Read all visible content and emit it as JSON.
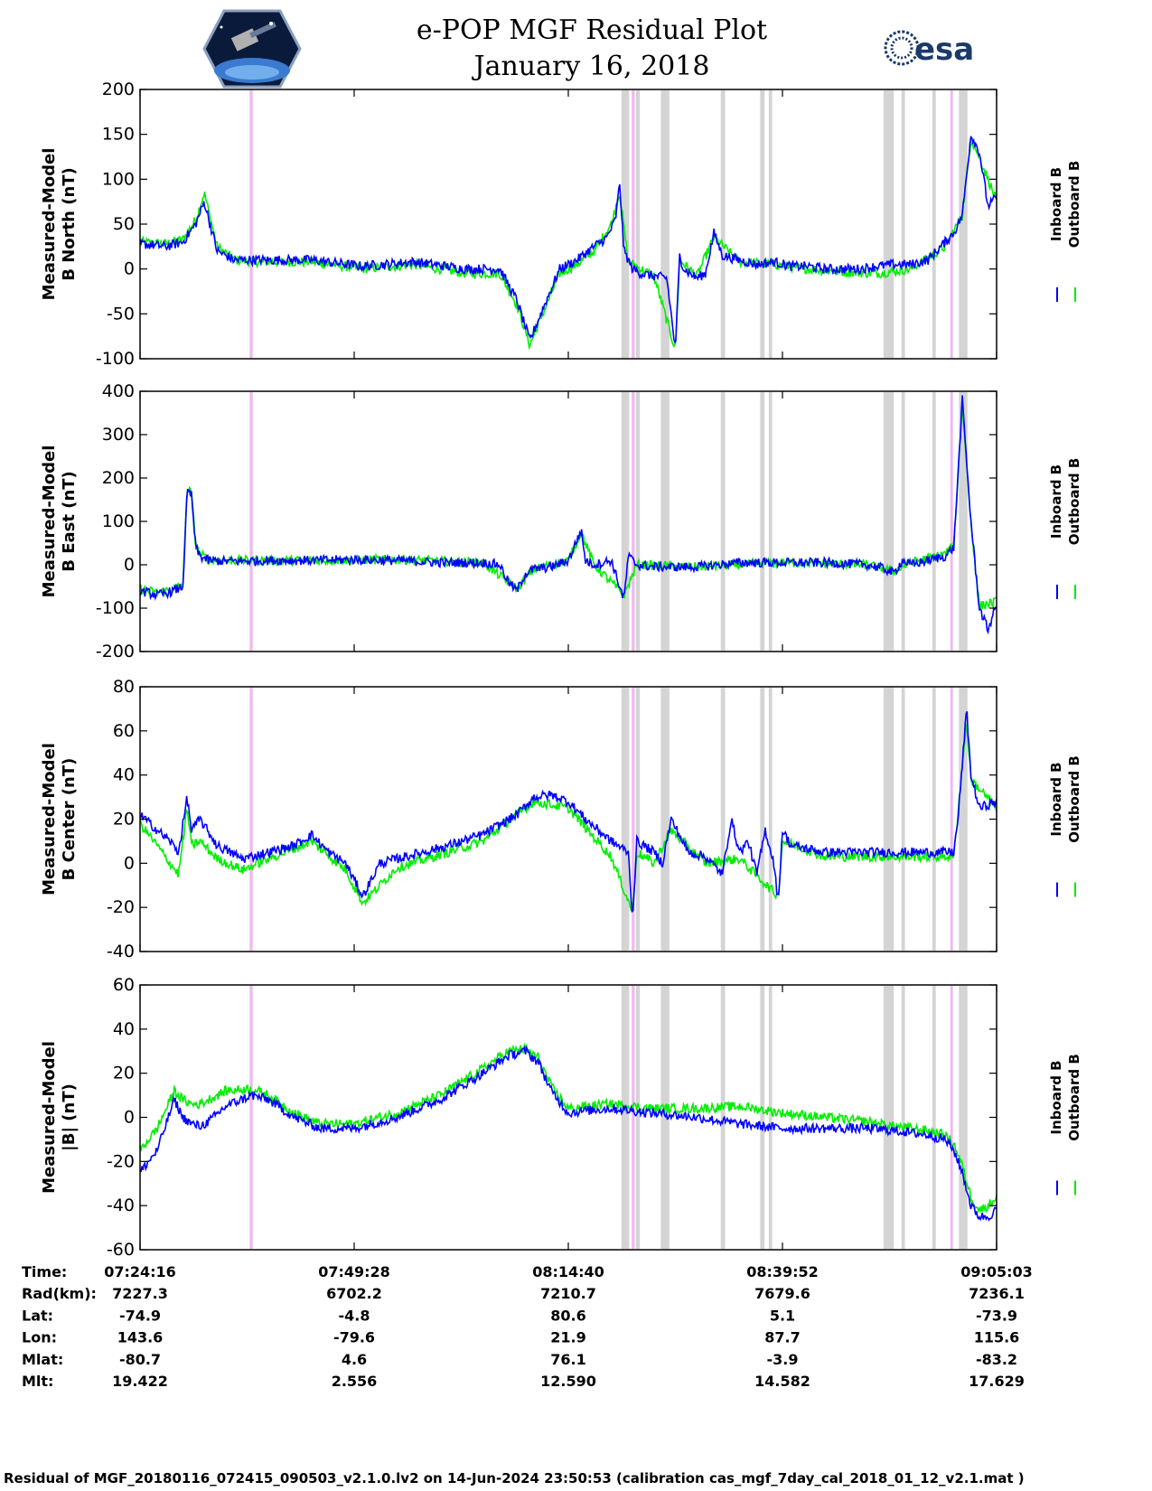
{
  "title_line1": "e-POP MGF Residual Plot",
  "title_line2": "January 16, 2018",
  "esa_logo_text": "esa",
  "footer": "Residual of MGF_20180116_072415_090503_v2.1.0.lv2 on 14-Jun-2024 23:50:53 (calibration cas_mgf_7day_cal_2018_01_12_v2.1.mat )",
  "colors": {
    "inboard": "#0000ff",
    "outboard": "#00ee00",
    "band_gray": "#d4d4d4",
    "band_pink": "#efb8ef"
  },
  "legend": {
    "inboard": "Inboard B",
    "outboard": "Outboard B"
  },
  "time_table": {
    "rows": [
      {
        "label": "Time:",
        "values": [
          "07:24:16",
          "07:49:28",
          "08:14:40",
          "08:39:52",
          "09:05:03"
        ]
      },
      {
        "label": "Rad(km):",
        "values": [
          "7227.3",
          "6702.2",
          "7210.7",
          "7679.6",
          "7236.1"
        ]
      },
      {
        "label": "Lat:",
        "values": [
          "-74.9",
          "-4.8",
          "80.6",
          "5.1",
          "-73.9"
        ]
      },
      {
        "label": "Lon:",
        "values": [
          "143.6",
          "-79.6",
          "21.9",
          "87.7",
          "115.6"
        ]
      },
      {
        "label": "Mlat:",
        "values": [
          "-80.7",
          "4.6",
          "76.1",
          "-3.9",
          "-83.2"
        ]
      },
      {
        "label": "Mlt:",
        "values": [
          "19.422",
          "2.556",
          "12.590",
          "14.582",
          "17.629"
        ]
      }
    ]
  },
  "chart_data": [
    {
      "type": "line",
      "ylabel_line1": "Measured-Model",
      "ylabel_line2": "B North (nT)",
      "ylim": [
        -100,
        200
      ],
      "yticks": [
        -100,
        -50,
        0,
        50,
        100,
        150,
        200
      ],
      "xlim": [
        0,
        100
      ],
      "xticks": [
        0,
        25,
        50,
        75,
        100
      ],
      "series": [
        {
          "name": "Inboard B",
          "color": "#0000ff",
          "x": [
            0,
            3,
            5,
            6.5,
            7.5,
            9,
            11,
            14,
            20,
            26,
            32,
            38,
            42,
            44,
            45.5,
            47,
            49,
            51,
            53,
            54.5,
            55.5,
            56,
            56.5,
            57,
            57.5,
            58.5,
            60,
            61.5,
            62.5,
            63,
            63.5,
            65,
            66,
            67,
            68,
            70,
            72,
            74,
            76,
            78,
            80,
            82,
            84,
            86,
            88,
            90,
            92,
            93.5,
            95,
            96,
            97,
            98,
            99,
            100
          ],
          "y": [
            28,
            25,
            30,
            50,
            75,
            20,
            10,
            10,
            10,
            3,
            8,
            0,
            0,
            -35,
            -80,
            -45,
            0,
            10,
            25,
            35,
            55,
            95,
            20,
            10,
            0,
            -5,
            -8,
            -10,
            -90,
            15,
            0,
            -10,
            -5,
            40,
            15,
            10,
            5,
            8,
            3,
            3,
            0,
            0,
            0,
            3,
            5,
            5,
            10,
            25,
            40,
            60,
            150,
            130,
            70,
            80
          ]
        },
        {
          "name": "Outboard B",
          "color": "#00ee00",
          "x": [
            0,
            3,
            5,
            6.5,
            7.5,
            9,
            11,
            14,
            20,
            26,
            32,
            38,
            42,
            44,
            45.5,
            47,
            49,
            51,
            53,
            55,
            56,
            57,
            60,
            62.5,
            63,
            65,
            67,
            70,
            74,
            78,
            82,
            86,
            90,
            94,
            96,
            97,
            98,
            100
          ],
          "y": [
            30,
            28,
            33,
            55,
            85,
            25,
            10,
            8,
            8,
            0,
            5,
            -5,
            -5,
            -40,
            -85,
            -50,
            -5,
            5,
            20,
            50,
            85,
            8,
            -8,
            -90,
            10,
            -8,
            35,
            8,
            5,
            0,
            -3,
            -5,
            0,
            25,
            60,
            145,
            125,
            75
          ]
        }
      ]
    },
    {
      "type": "line",
      "ylabel_line1": "Measured-Model",
      "ylabel_line2": "B East (nT)",
      "ylim": [
        -200,
        400
      ],
      "yticks": [
        -200,
        -100,
        0,
        100,
        200,
        300,
        400
      ],
      "xlim": [
        0,
        100
      ],
      "xticks": [
        0,
        25,
        50,
        75,
        100
      ],
      "series": [
        {
          "name": "Inboard B",
          "color": "#0000ff",
          "x": [
            0,
            2,
            4,
            5,
            5.5,
            6,
            6.5,
            7,
            8,
            10,
            15,
            20,
            25,
            30,
            35,
            40,
            42,
            43,
            44,
            45,
            46,
            48,
            50,
            51.5,
            52,
            53,
            55,
            56.5,
            57,
            58,
            60,
            65,
            70,
            75,
            80,
            85,
            87,
            88,
            89,
            90,
            92,
            94,
            95,
            96,
            97,
            98,
            99,
            100
          ],
          "y": [
            -60,
            -70,
            -60,
            -50,
            170,
            160,
            40,
            20,
            10,
            8,
            10,
            10,
            12,
            10,
            5,
            5,
            0,
            -40,
            -60,
            -20,
            -10,
            -5,
            10,
            80,
            10,
            0,
            10,
            -80,
            20,
            0,
            -5,
            -5,
            5,
            5,
            5,
            0,
            -10,
            -20,
            10,
            0,
            10,
            20,
            40,
            380,
            100,
            -100,
            -150,
            -90
          ]
        },
        {
          "name": "Outboard B",
          "color": "#00ee00",
          "x": [
            0,
            2,
            4,
            5,
            5.5,
            6,
            6.5,
            7,
            8,
            10,
            15,
            20,
            30,
            40,
            44,
            46,
            50,
            51.5,
            53,
            56.5,
            58,
            65,
            75,
            85,
            88,
            90,
            94,
            95,
            96,
            97,
            98,
            100
          ],
          "y": [
            -55,
            -65,
            -55,
            -45,
            175,
            165,
            45,
            25,
            12,
            10,
            10,
            10,
            12,
            5,
            -55,
            -10,
            10,
            75,
            0,
            -70,
            0,
            -5,
            5,
            0,
            -15,
            5,
            25,
            45,
            370,
            95,
            -95,
            -85
          ]
        }
      ]
    },
    {
      "type": "line",
      "ylabel_line1": "Measured-Model",
      "ylabel_line2": "B Center (nT)",
      "ylim": [
        -40,
        80
      ],
      "yticks": [
        -40,
        -20,
        0,
        20,
        40,
        60,
        80
      ],
      "xlim": [
        0,
        100
      ],
      "xticks": [
        0,
        25,
        50,
        75,
        100
      ],
      "series": [
        {
          "name": "Inboard B",
          "color": "#0000ff",
          "x": [
            0,
            2,
            3.5,
            4.5,
            5.5,
            6,
            7,
            9,
            12,
            15,
            18,
            20,
            22,
            24,
            26,
            28,
            30,
            33,
            36,
            40,
            44,
            46,
            48,
            50,
            52,
            55,
            57,
            57.5,
            58,
            60,
            61,
            62,
            64,
            66,
            68,
            69,
            70,
            71,
            72,
            73,
            74,
            74.5,
            75,
            76,
            80,
            85,
            90,
            93,
            95,
            95.5,
            96,
            96.5,
            97,
            98,
            100
          ],
          "y": [
            22,
            15,
            10,
            5,
            30,
            15,
            20,
            8,
            2,
            5,
            8,
            13,
            5,
            0,
            -15,
            0,
            2,
            5,
            8,
            13,
            22,
            30,
            31,
            28,
            20,
            10,
            5,
            -25,
            10,
            5,
            0,
            20,
            5,
            3,
            -5,
            20,
            5,
            10,
            -5,
            15,
            0,
            -18,
            15,
            8,
            5,
            5,
            5,
            5,
            5,
            20,
            45,
            70,
            40,
            25,
            28
          ]
        },
        {
          "name": "Outboard B",
          "color": "#00ee00",
          "x": [
            0,
            2,
            3.5,
            4.5,
            5.5,
            6,
            7,
            9,
            12,
            15,
            20,
            24,
            26,
            30,
            36,
            40,
            46,
            50,
            55,
            57.5,
            58,
            60,
            62,
            66,
            70,
            74.5,
            75,
            80,
            90,
            95,
            96.5,
            97,
            100
          ],
          "y": [
            18,
            8,
            0,
            -5,
            25,
            8,
            10,
            2,
            -3,
            2,
            10,
            -3,
            -18,
            -2,
            5,
            10,
            28,
            25,
            3,
            -22,
            5,
            0,
            15,
            0,
            2,
            -15,
            10,
            3,
            3,
            3,
            65,
            38,
            25
          ]
        }
      ]
    },
    {
      "type": "line",
      "ylabel_line1": "Measured-Model",
      "ylabel_line2": "|B| (nT)",
      "ylim": [
        -60,
        60
      ],
      "yticks": [
        -60,
        -40,
        -20,
        0,
        20,
        40,
        60
      ],
      "xlim": [
        0,
        100
      ],
      "xticks": [
        0,
        25,
        50,
        75,
        100
      ],
      "series": [
        {
          "name": "Inboard B",
          "color": "#0000ff",
          "x": [
            0,
            2,
            4,
            5,
            6,
            7,
            8,
            10,
            13,
            15,
            18,
            21,
            25,
            30,
            35,
            40,
            43,
            45,
            46.5,
            48,
            50,
            52,
            55,
            60,
            65,
            70,
            75,
            80,
            85,
            88,
            92,
            94,
            95,
            96,
            97,
            98,
            99,
            100
          ],
          "y": [
            -25,
            -15,
            8,
            0,
            -3,
            -4,
            -2,
            5,
            10,
            8,
            0,
            -5,
            -5,
            0,
            8,
            20,
            28,
            30,
            25,
            12,
            2,
            3,
            4,
            2,
            0,
            -3,
            -5,
            -5,
            -5,
            -6,
            -8,
            -10,
            -15,
            -25,
            -40,
            -45,
            -45,
            -42
          ]
        },
        {
          "name": "Outboard B",
          "color": "#00ee00",
          "x": [
            0,
            2,
            4,
            5,
            6,
            7,
            8,
            10,
            13,
            15,
            18,
            21,
            25,
            30,
            35,
            40,
            43,
            45,
            46.5,
            48,
            50,
            52,
            55,
            60,
            65,
            70,
            75,
            80,
            85,
            88,
            92,
            94,
            95,
            96,
            97,
            98,
            99,
            100
          ],
          "y": [
            -15,
            -5,
            12,
            8,
            6,
            6,
            8,
            12,
            13,
            10,
            2,
            -3,
            -3,
            2,
            10,
            22,
            30,
            31,
            27,
            14,
            4,
            5,
            6,
            4,
            4,
            5,
            2,
            0,
            -2,
            -4,
            -6,
            -8,
            -12,
            -22,
            -36,
            -42,
            -40,
            -36
          ]
        }
      ]
    }
  ],
  "event_bands": [
    {
      "x": 12.8,
      "w": 0.35,
      "color": "pink"
    },
    {
      "x": 56.2,
      "w": 0.9,
      "color": "gray"
    },
    {
      "x": 57.4,
      "w": 0.35,
      "color": "pink"
    },
    {
      "x": 57.9,
      "w": 0.45,
      "color": "gray"
    },
    {
      "x": 60.8,
      "w": 1.0,
      "color": "gray"
    },
    {
      "x": 67.8,
      "w": 0.5,
      "color": "gray"
    },
    {
      "x": 72.4,
      "w": 0.5,
      "color": "gray"
    },
    {
      "x": 73.4,
      "w": 0.4,
      "color": "gray"
    },
    {
      "x": 86.8,
      "w": 1.2,
      "color": "gray"
    },
    {
      "x": 88.9,
      "w": 0.4,
      "color": "gray"
    },
    {
      "x": 92.5,
      "w": 0.4,
      "color": "gray"
    },
    {
      "x": 94.6,
      "w": 0.3,
      "color": "pink"
    },
    {
      "x": 95.6,
      "w": 1.0,
      "color": "gray"
    }
  ]
}
